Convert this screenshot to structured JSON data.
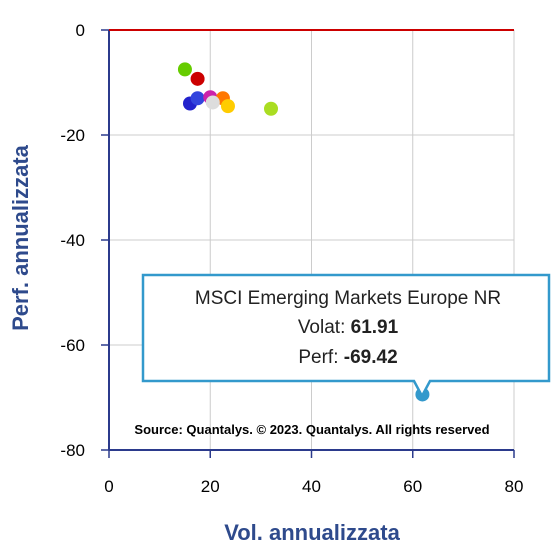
{
  "chart_data": {
    "type": "scatter",
    "title": "",
    "xlabel": "Vol. annualizzata",
    "ylabel": "Perf. annualizzata",
    "xlim": [
      0,
      80
    ],
    "ylim": [
      -80,
      0
    ],
    "x_ticks": [
      "0",
      "20",
      "40",
      "60",
      "80"
    ],
    "y_ticks": [
      "0",
      "-20",
      "-40",
      "-60",
      "-80"
    ],
    "grid": true,
    "points": [
      {
        "x": 15.0,
        "y": -7.5,
        "color": "#66cc00"
      },
      {
        "x": 17.5,
        "y": -9.3,
        "color": "#cc0000"
      },
      {
        "x": 16.0,
        "y": -14.0,
        "color": "#2222cc"
      },
      {
        "x": 17.5,
        "y": -13.0,
        "color": "#3344dd"
      },
      {
        "x": 20.0,
        "y": -12.8,
        "color": "#cc22aa"
      },
      {
        "x": 22.5,
        "y": -13.0,
        "color": "#ff7700"
      },
      {
        "x": 20.5,
        "y": -13.8,
        "color": "#dddddd"
      },
      {
        "x": 23.5,
        "y": -14.5,
        "color": "#ffcc00"
      },
      {
        "x": 32.0,
        "y": -15.0,
        "color": "#aadd22"
      },
      {
        "x": 61.91,
        "y": -69.42,
        "color": "#3399cc"
      }
    ],
    "reference_line": {
      "y": 0,
      "color": "#cc0000"
    },
    "source": "Source: Quantalys. © 2023. Quantalys. All rights reserved",
    "tooltip": {
      "name": "MSCI Emerging Markets Europe NR",
      "volat_label": "Volat:",
      "volat_value": "61.91",
      "perf_label": "Perf:",
      "perf_value": "-69.42",
      "border_color": "#3399cc"
    }
  }
}
